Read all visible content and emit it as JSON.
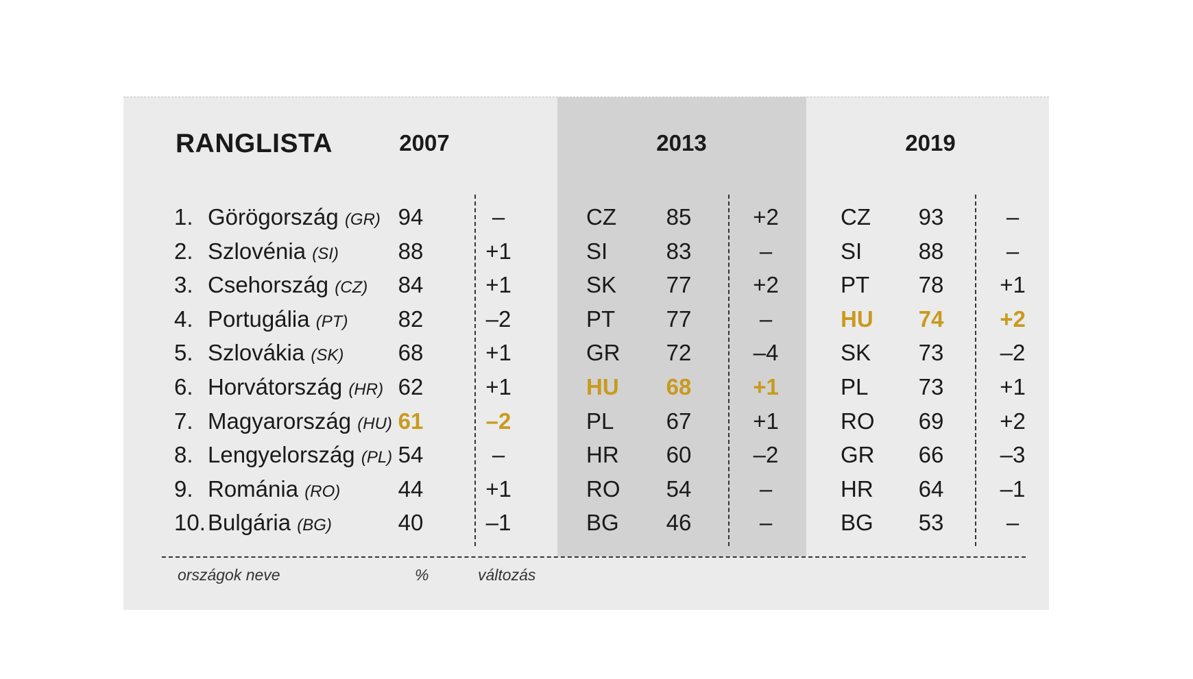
{
  "chart_data": {
    "type": "table",
    "title": "RANGLISTA",
    "years": [
      "2007",
      "2013",
      "2019"
    ],
    "highlight_color": "#c99a1e",
    "highlight_code": "HU",
    "footer": {
      "names": "országok neve",
      "percent": "%",
      "change": "változás"
    },
    "rows": [
      {
        "rank": "1.",
        "country": "Görögország",
        "code": "(GR)",
        "p2007": "94",
        "c2007": "–",
        "cc2013": "CZ",
        "p2013": "85",
        "c2013": "+2",
        "cc2019": "CZ",
        "p2019": "93",
        "c2019": "–"
      },
      {
        "rank": "2.",
        "country": "Szlovénia",
        "code": "(SI)",
        "p2007": "88",
        "c2007": "+1",
        "cc2013": "SI",
        "p2013": "83",
        "c2013": "–",
        "cc2019": "SI",
        "p2019": "88",
        "c2019": "–"
      },
      {
        "rank": "3.",
        "country": "Csehország",
        "code": "(CZ)",
        "p2007": "84",
        "c2007": "+1",
        "cc2013": "SK",
        "p2013": "77",
        "c2013": "+2",
        "cc2019": "PT",
        "p2019": "78",
        "c2019": "+1"
      },
      {
        "rank": "4.",
        "country": "Portugália",
        "code": "(PT)",
        "p2007": "82",
        "c2007": "–2",
        "cc2013": "PT",
        "p2013": "77",
        "c2013": "–",
        "cc2019": "HU",
        "p2019": "74",
        "c2019": "+2"
      },
      {
        "rank": "5.",
        "country": "Szlovákia",
        "code": "(SK)",
        "p2007": "68",
        "c2007": "+1",
        "cc2013": "GR",
        "p2013": "72",
        "c2013": "–4",
        "cc2019": "SK",
        "p2019": "73",
        "c2019": "–2"
      },
      {
        "rank": "6.",
        "country": "Horvátország",
        "code": "(HR)",
        "p2007": "62",
        "c2007": "+1",
        "cc2013": "HU",
        "p2013": "68",
        "c2013": "+1",
        "cc2019": "PL",
        "p2019": "73",
        "c2019": "+1"
      },
      {
        "rank": "7.",
        "country": "Magyarország",
        "code": "(HU)",
        "p2007": "61",
        "c2007": "–2",
        "cc2013": "PL",
        "p2013": "67",
        "c2013": "+1",
        "cc2019": "RO",
        "p2019": "69",
        "c2019": "+2"
      },
      {
        "rank": "8.",
        "country": "Lengyelország",
        "code": "(PL)",
        "p2007": "54",
        "c2007": "–",
        "cc2013": "HR",
        "p2013": "60",
        "c2013": "–2",
        "cc2019": "GR",
        "p2019": "66",
        "c2019": "–3"
      },
      {
        "rank": "9.",
        "country": "Románia",
        "code": "(RO)",
        "p2007": "44",
        "c2007": "+1",
        "cc2013": "RO",
        "p2013": "54",
        "c2013": "–",
        "cc2019": "HR",
        "p2019": "64",
        "c2019": "–1"
      },
      {
        "rank": "10.",
        "country": "Bulgária",
        "code": "(BG)",
        "p2007": "40",
        "c2007": "–1",
        "cc2013": "BG",
        "p2013": "46",
        "c2013": "–",
        "cc2019": "BG",
        "p2019": "53",
        "c2019": "–"
      }
    ]
  }
}
